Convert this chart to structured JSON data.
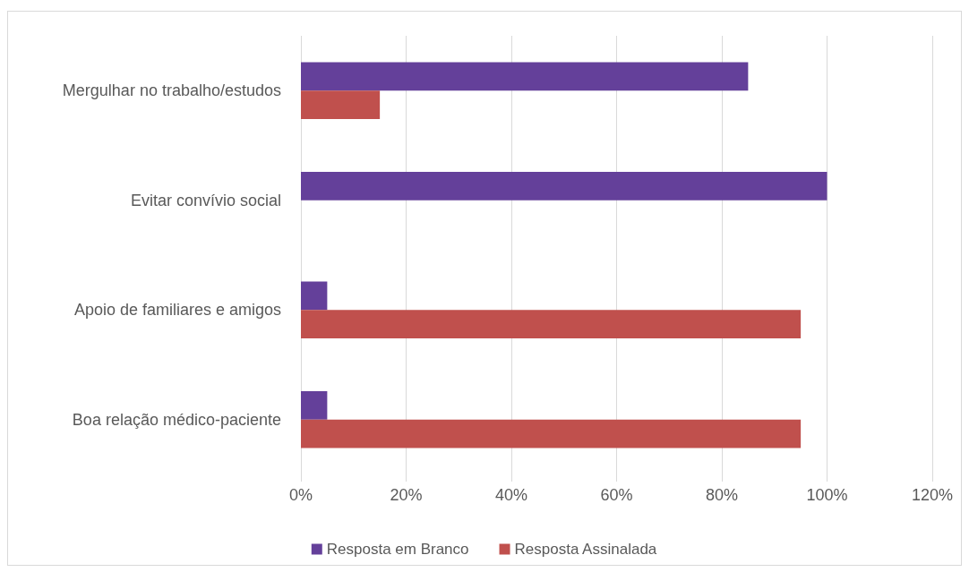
{
  "chart_data": {
    "type": "bar",
    "orientation": "horizontal",
    "categories": [
      "Mergulhar no trabalho/estudos",
      "Evitar convívio social",
      "Apoio de familiares e amigos",
      "Boa relação médico-paciente"
    ],
    "series": [
      {
        "name": "Resposta em Branco",
        "color": "#64409a",
        "values": [
          85,
          100,
          5,
          5
        ]
      },
      {
        "name": "Resposta Assinalada",
        "color": "#c0504d",
        "values": [
          15,
          0,
          95,
          95
        ]
      }
    ],
    "xlim": [
      0,
      120
    ],
    "xticks": [
      {
        "value": 0,
        "label": "0%"
      },
      {
        "value": 20,
        "label": "20%"
      },
      {
        "value": 40,
        "label": "40%"
      },
      {
        "value": 60,
        "label": "60%"
      },
      {
        "value": 80,
        "label": "80%"
      },
      {
        "value": 100,
        "label": "100%"
      },
      {
        "value": 120,
        "label": "120%"
      }
    ],
    "grid": "x",
    "legend": "bottom"
  }
}
